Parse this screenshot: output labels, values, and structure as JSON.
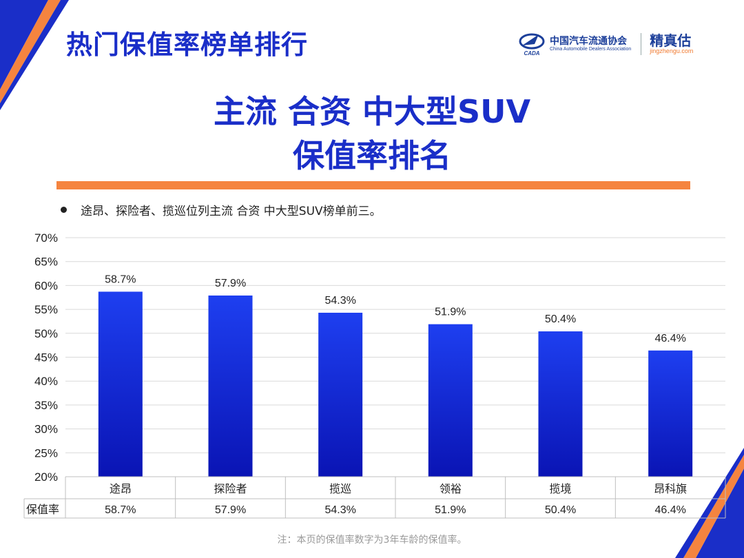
{
  "header": {
    "title": "热门保值率榜单排行"
  },
  "logos": {
    "cada_cn": "中国汽车流通协会",
    "cada_en": "China Automobile Dealers Association",
    "cada_abbr": "CADA",
    "jz_cn": "精真估",
    "jz_url": "jingzhengu.com"
  },
  "title": {
    "line1": "主流 合资 中大型SUV",
    "line2": "保值率排名"
  },
  "bullet": "途昂、探险者、揽巡位列主流 合资 中大型SUV榜单前三。",
  "footnote": "注：本页的保值率数字为3年车龄的保值率。",
  "colors": {
    "accent": "#1a2ec8",
    "bar_top": "#1e3ff0",
    "bar_bottom": "#0a14b4",
    "orange": "#f5843f"
  },
  "chart_data": {
    "type": "bar",
    "categories": [
      "途昂",
      "探险者",
      "揽巡",
      "领裕",
      "揽境",
      "昂科旗"
    ],
    "values": [
      58.7,
      57.9,
      54.3,
      51.9,
      50.4,
      46.4
    ],
    "value_labels": [
      "58.7%",
      "57.9%",
      "54.3%",
      "51.9%",
      "50.4%",
      "46.4%"
    ],
    "ylim": [
      20,
      70
    ],
    "yticks": [
      20,
      25,
      30,
      35,
      40,
      45,
      50,
      55,
      60,
      65,
      70
    ],
    "ytick_labels": [
      "20%",
      "25%",
      "30%",
      "35%",
      "40%",
      "45%",
      "50%",
      "55%",
      "60%",
      "65%",
      "70%"
    ],
    "series_name": "保值率",
    "grid": true,
    "legend": "none"
  }
}
